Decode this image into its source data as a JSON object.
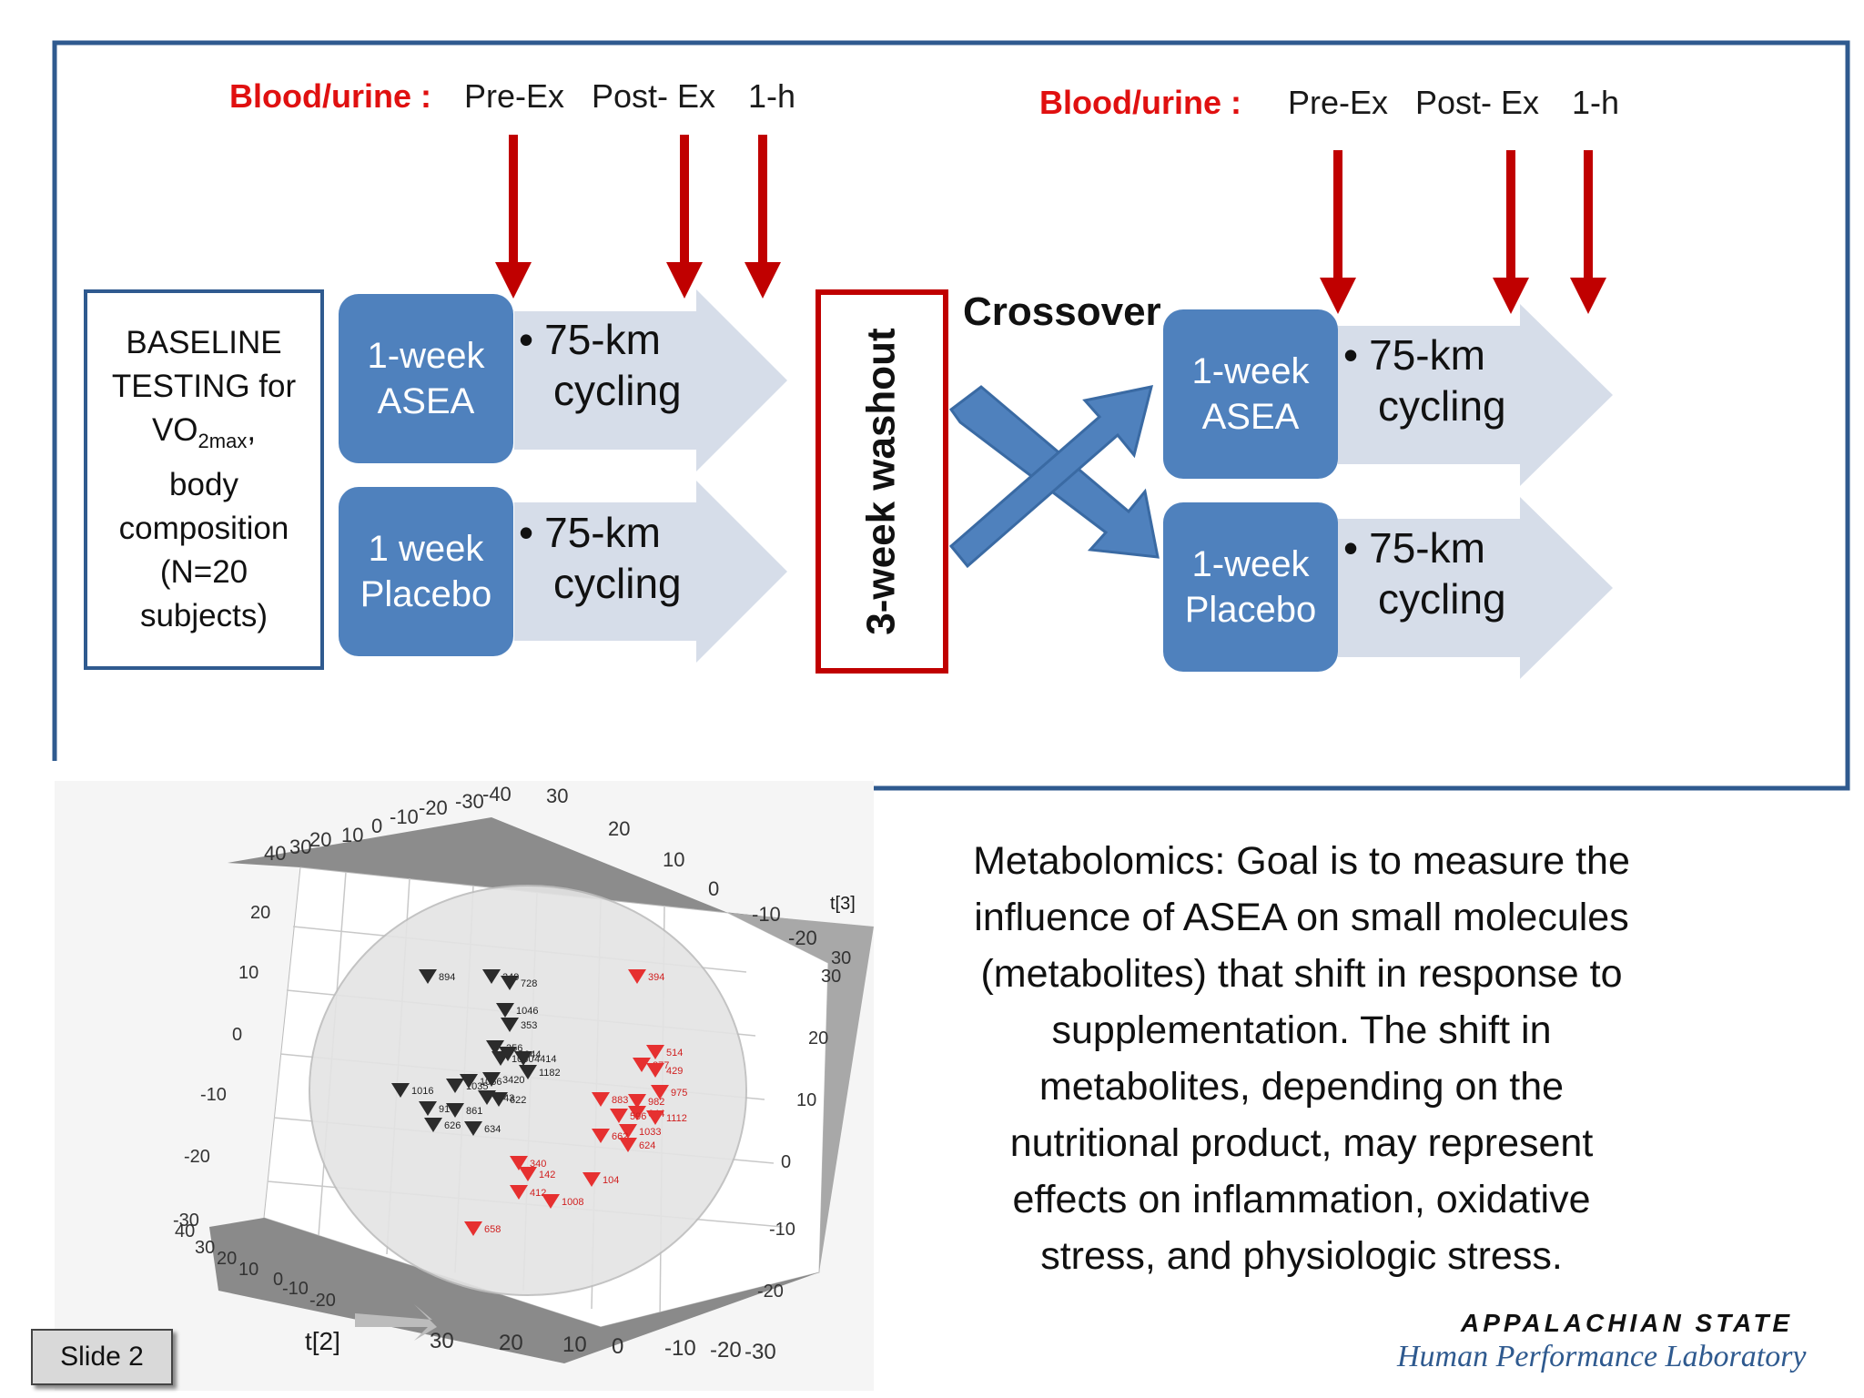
{
  "timeline": {
    "left": {
      "label": "Blood/urine :",
      "points": [
        "Pre-Ex",
        "Post- Ex",
        "1-h"
      ]
    },
    "right": {
      "label": "Blood/urine :",
      "points": [
        "Pre-Ex",
        "Post- Ex",
        "1-h"
      ]
    }
  },
  "baseline": {
    "line1": "BASELINE",
    "line2": "TESTING for",
    "vo2_main": "VO",
    "vo2_sub": "2max",
    "vo2_tail": ",",
    "line4": "body",
    "line5": "composition",
    "line6": "(N=20",
    "line7": "subjects)"
  },
  "phase1": {
    "box_top": {
      "line1": "1-week",
      "line2": "ASEA"
    },
    "box_bottom": {
      "line1": "1 week",
      "line2": "Placebo"
    },
    "arrow_top": {
      "bullet": "•",
      "line1": "75-km",
      "line2": "cycling"
    },
    "arrow_bottom": {
      "bullet": "•",
      "line1": "75-km",
      "line2": "cycling"
    }
  },
  "washout": {
    "label": "3-week washout"
  },
  "crossover": {
    "label": "Crossover"
  },
  "phase2": {
    "box_top": {
      "line1": "1-week",
      "line2": "ASEA"
    },
    "box_bottom": {
      "line1": "1-week",
      "line2": "Placebo"
    },
    "arrow_top": {
      "bullet": "•",
      "line1": "75-km",
      "line2": "cycling"
    },
    "arrow_bottom": {
      "bullet": "•",
      "line1": "75-km",
      "line2": "cycling"
    }
  },
  "plot3d": {
    "axis_t2": "t[2]",
    "axis_t3": "t[3]",
    "top_ticks": [
      "40",
      "30",
      "20",
      "10",
      "0",
      "-10",
      "-20",
      "-30",
      "-40",
      "30",
      "20",
      "10",
      "0",
      "-10",
      "-20"
    ],
    "left_ticks": [
      "20",
      "10",
      "0",
      "-10",
      "-20",
      "-30",
      "40",
      "30",
      "20",
      "10",
      "0",
      "-10",
      "-20"
    ],
    "right_ticks": [
      "30",
      "30",
      "20",
      "10",
      "0",
      "-10",
      "-20"
    ],
    "bottom_ticks": [
      "30",
      "20",
      "10",
      "0",
      "-10",
      "-20",
      "-30"
    ],
    "black_labels": [
      "894",
      "349",
      "728",
      "1046",
      "353",
      "356",
      "8944",
      "1060",
      "4414",
      "1182",
      "1016",
      "1035",
      "1066",
      "3420",
      "943",
      "622",
      "91",
      "861",
      "626",
      "634"
    ],
    "red_labels": [
      "394",
      "514",
      "877",
      "429",
      "975",
      "883",
      "982",
      "644",
      "596",
      "1112",
      "1033",
      "662",
      "624",
      "340",
      "142",
      "104",
      "412",
      "1008",
      "658"
    ],
    "colors": {
      "black_marker": "#2b2b2b",
      "red_marker": "#e63030",
      "wall": "#8a8a8a",
      "sphere": "#e4e4e4"
    }
  },
  "description": {
    "lines": [
      "Metabolomics:  Goal is to measure the",
      "influence of ASEA on small molecules",
      "(metabolites) that shift in response to",
      "supplementation.  The shift in",
      "metabolites, depending on the",
      "nutritional product, may represent",
      "effects on inflammation, oxidative",
      "stress, and physiologic stress."
    ]
  },
  "slide_label": "Slide 2",
  "branding": {
    "university": "APPALACHIAN STATE",
    "lab": "Human Performance Laboratory"
  },
  "colors": {
    "frame_blue": "#2f5a8f",
    "box_blue": "#4f81bd",
    "arrow_fill": "#d6dde9",
    "red": "#c00000",
    "label_red": "#e01010"
  }
}
